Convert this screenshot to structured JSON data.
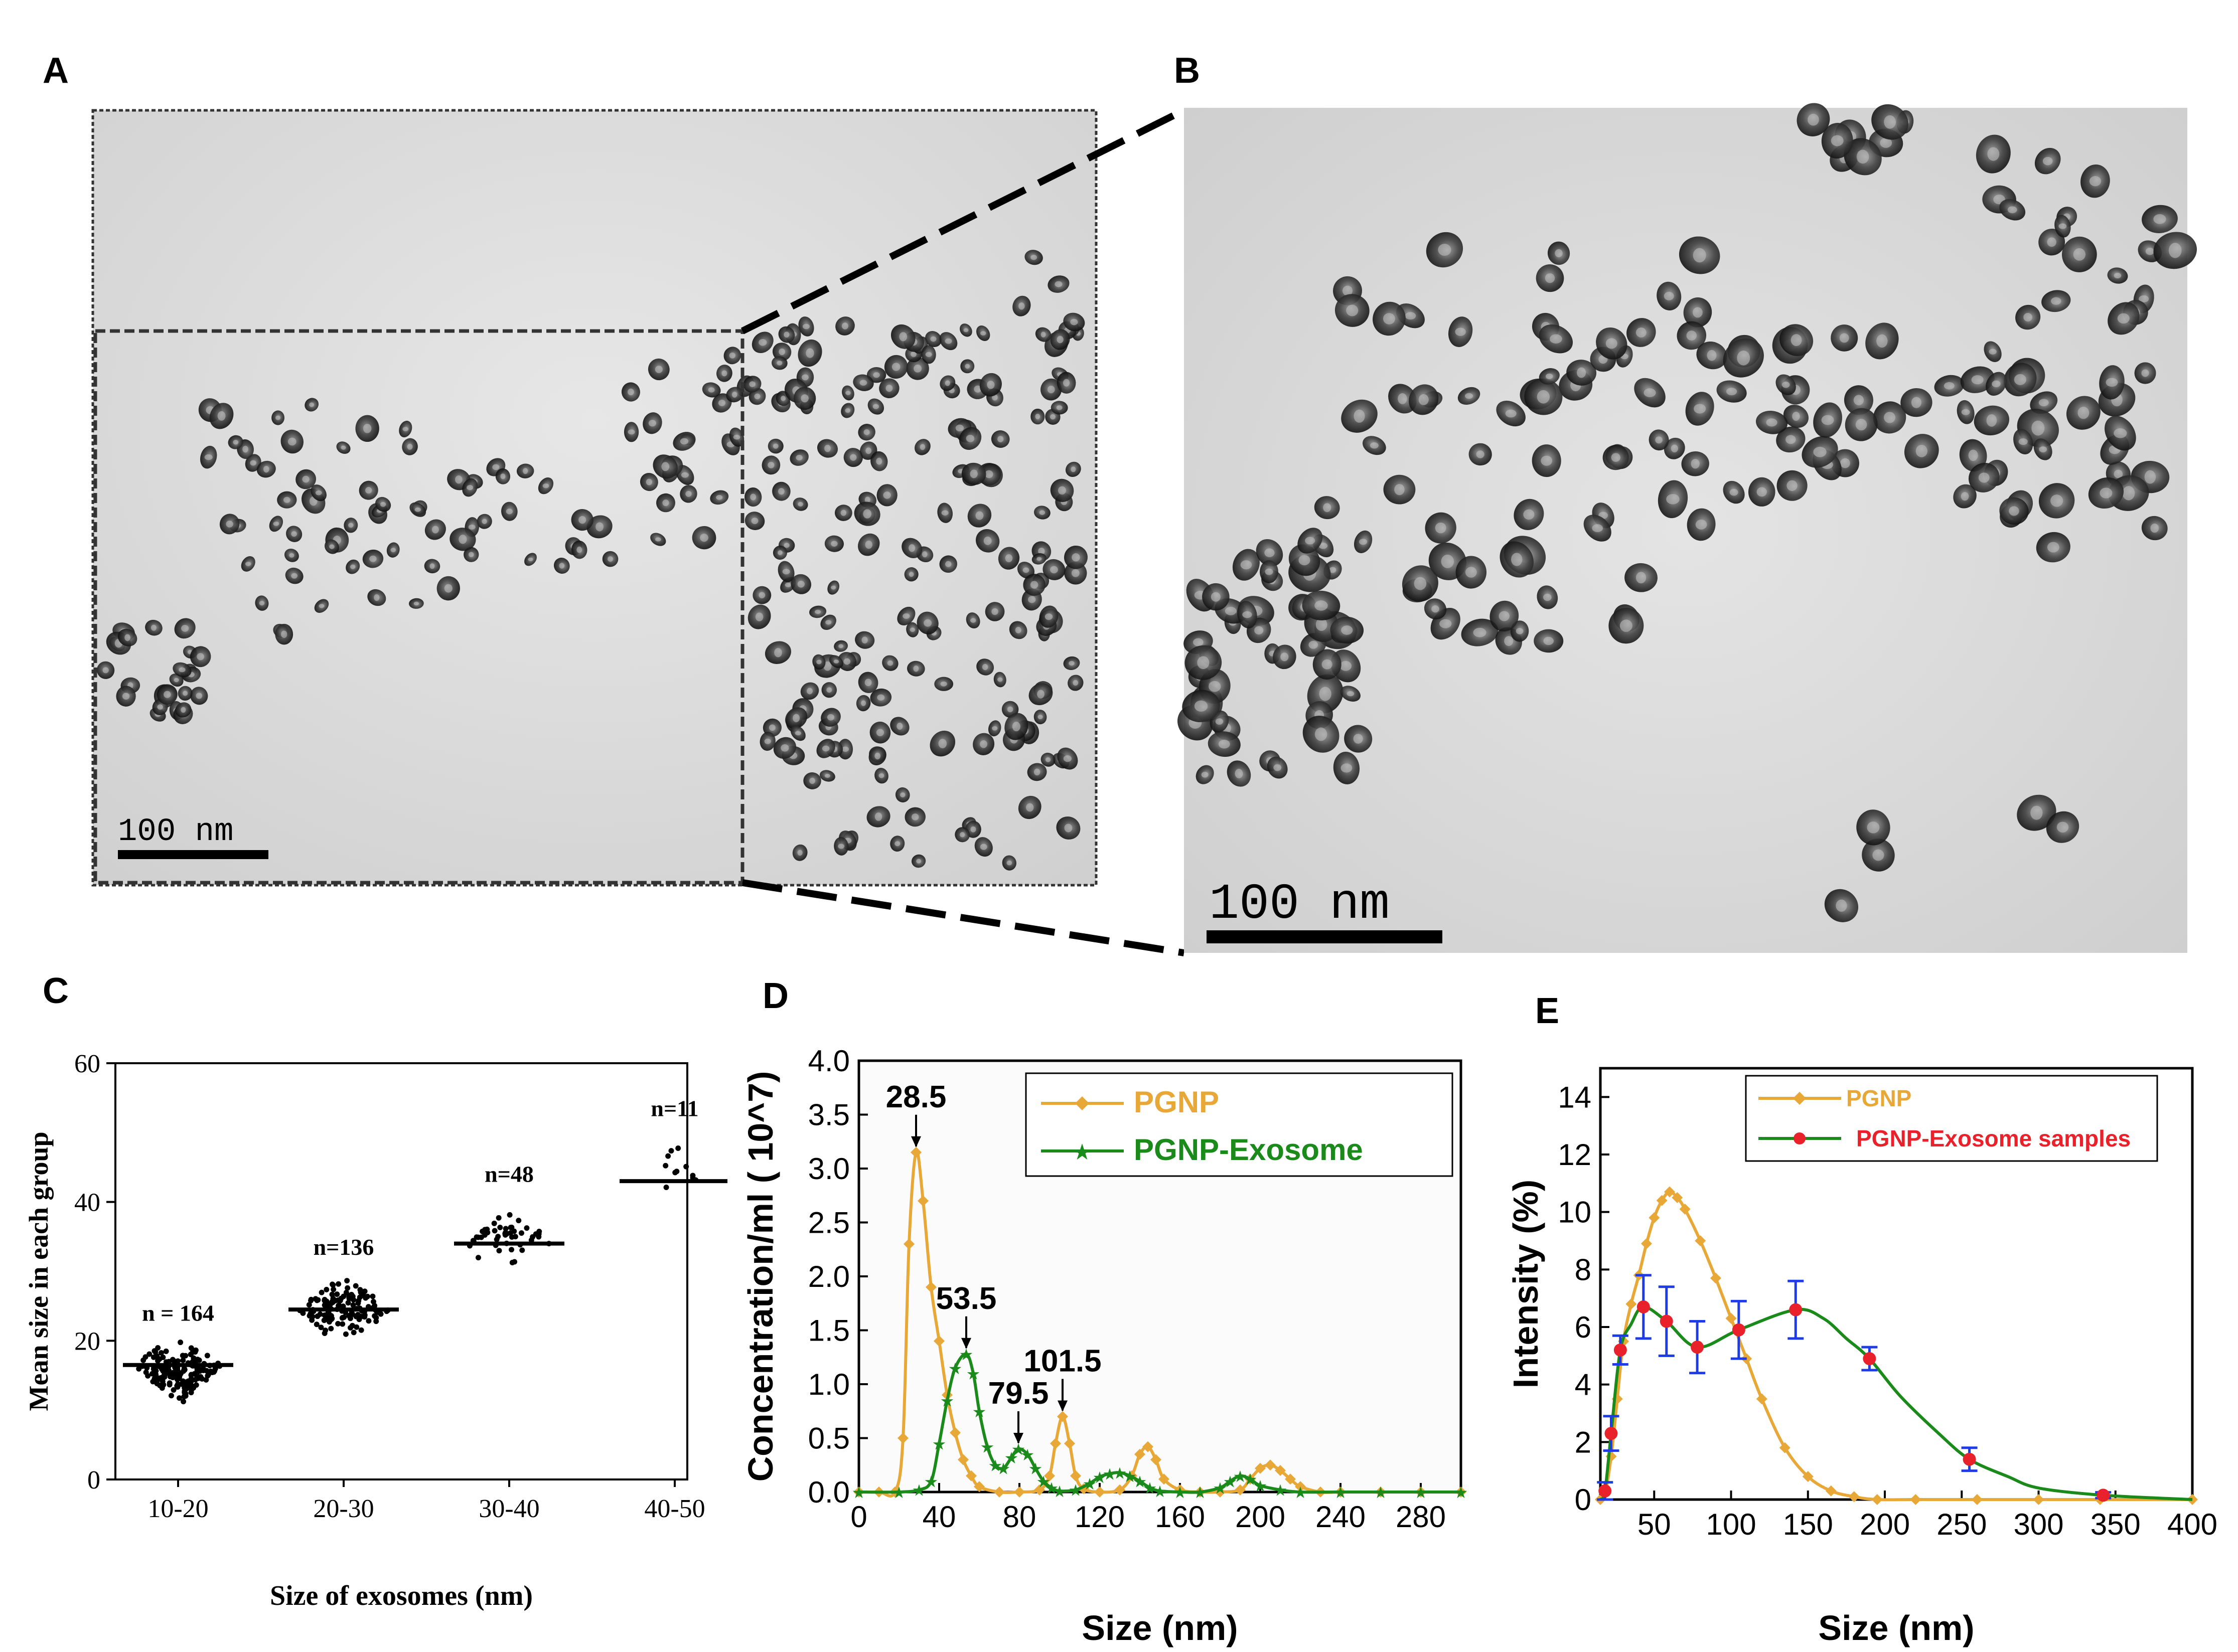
{
  "panels": {
    "A": {
      "label": "A",
      "scale_bar": "100 nm"
    },
    "B": {
      "label": "B",
      "scale_bar": "100 nm"
    },
    "C": {
      "label": "C"
    },
    "D": {
      "label": "D"
    },
    "E": {
      "label": "E"
    }
  },
  "chart_data": [
    {
      "panel": "C",
      "type": "scatter",
      "xlabel": "Size of exosomes (nm)",
      "ylabel": "Mean size in each group",
      "ylim": [
        0,
        60
      ],
      "yticks": [
        0,
        20,
        40,
        60
      ],
      "categories": [
        "10-20",
        "20-30",
        "30-40",
        "40-50"
      ],
      "groups": [
        {
          "category": "10-20",
          "n_label": "n = 164",
          "n": 164,
          "mean": 16.5,
          "min": 11,
          "max": 20
        },
        {
          "category": "20-30",
          "n_label": "n=136",
          "n": 136,
          "mean": 24.5,
          "min": 20,
          "max": 29.5
        },
        {
          "category": "30-40",
          "n_label": "n=48",
          "n": 48,
          "mean": 34,
          "min": 30,
          "max": 40
        },
        {
          "category": "40-50",
          "n_label": "n=11",
          "n": 11,
          "mean": 43,
          "min": 40.5,
          "max": 49.5
        }
      ],
      "marker_color": "#000000"
    },
    {
      "panel": "D",
      "type": "line",
      "xlabel": "Size (nm)",
      "ylabel": "Concentration/ml ( 10^7)",
      "xlim": [
        0,
        300
      ],
      "ylim": [
        0,
        4.0
      ],
      "xticks": [
        0,
        40,
        80,
        120,
        160,
        200,
        240,
        280
      ],
      "yticks": [
        "0.0",
        "0.5",
        "1.0",
        "1.5",
        "2.0",
        "2.5",
        "3.0",
        "3.5",
        "4.0"
      ],
      "legend_position": "top-right",
      "series": [
        {
          "name": "PGNP",
          "color": "#E8A838",
          "marker": "diamond",
          "x": [
            0,
            10,
            18,
            22,
            25,
            28.5,
            32,
            36,
            40,
            44,
            48,
            52,
            56,
            60,
            70,
            80,
            90,
            95,
            98,
            101.5,
            105,
            108,
            112,
            120,
            130,
            136,
            140,
            144,
            148,
            152,
            160,
            170,
            180,
            190,
            195,
            200,
            205,
            210,
            215,
            220,
            230,
            240,
            260,
            280,
            300
          ],
          "y": [
            0,
            0,
            0,
            0.5,
            2.3,
            3.15,
            2.7,
            1.9,
            1.4,
            0.9,
            0.55,
            0.3,
            0.15,
            0.05,
            0,
            0,
            0.02,
            0.15,
            0.45,
            0.7,
            0.45,
            0.15,
            0.03,
            0,
            0.02,
            0.15,
            0.35,
            0.42,
            0.3,
            0.12,
            0.02,
            0,
            0,
            0.02,
            0.12,
            0.22,
            0.25,
            0.2,
            0.12,
            0.05,
            0,
            0,
            0,
            0,
            0
          ]
        },
        {
          "name": "PGNP-Exosome",
          "color": "#1A8A1A",
          "marker": "star",
          "x": [
            0,
            20,
            30,
            36,
            40,
            44,
            48,
            53.5,
            57,
            60,
            64,
            68,
            72,
            76,
            79.5,
            84,
            88,
            92,
            96,
            100,
            108,
            115,
            120,
            125,
            130,
            135,
            140,
            145,
            150,
            160,
            170,
            180,
            185,
            190,
            195,
            200,
            210,
            220,
            240,
            260,
            280,
            300
          ],
          "y": [
            0,
            0,
            0.02,
            0.1,
            0.45,
            0.85,
            1.15,
            1.28,
            1.1,
            0.75,
            0.42,
            0.25,
            0.22,
            0.32,
            0.4,
            0.35,
            0.22,
            0.1,
            0.04,
            0.01,
            0.02,
            0.08,
            0.14,
            0.17,
            0.18,
            0.15,
            0.1,
            0.04,
            0.01,
            0,
            0,
            0.04,
            0.1,
            0.15,
            0.12,
            0.06,
            0.02,
            0,
            0,
            0,
            0,
            0
          ]
        }
      ],
      "annotations": [
        {
          "text": "28.5",
          "x": 28.5,
          "y": 3.15
        },
        {
          "text": "53.5",
          "x": 53.5,
          "y": 1.28
        },
        {
          "text": "79.5",
          "x": 79.5,
          "y": 0.4
        },
        {
          "text": "101.5",
          "x": 101.5,
          "y": 0.7
        }
      ]
    },
    {
      "panel": "E",
      "type": "line",
      "xlabel": "Size (nm)",
      "ylabel": "Intensity (%)",
      "xlim": [
        15,
        400
      ],
      "ylim": [
        0,
        15
      ],
      "xticks": [
        50,
        100,
        150,
        200,
        250,
        300,
        350,
        400
      ],
      "yticks": [
        0,
        2,
        4,
        6,
        8,
        10,
        12,
        14
      ],
      "legend_position": "top-right",
      "series": [
        {
          "name": "PGNP",
          "color": "#E8A838",
          "marker": "diamond",
          "x": [
            15,
            18,
            22,
            26,
            30,
            35,
            40,
            45,
            50,
            55,
            60,
            65,
            70,
            80,
            90,
            100,
            110,
            120,
            135,
            150,
            165,
            180,
            195,
            220,
            260,
            300,
            340,
            400
          ],
          "y": [
            0,
            0.2,
            1.5,
            3.5,
            5.5,
            6.8,
            7.8,
            8.9,
            9.8,
            10.4,
            10.7,
            10.5,
            10.1,
            9.0,
            7.7,
            6.3,
            4.9,
            3.5,
            1.8,
            0.8,
            0.3,
            0.1,
            0,
            0,
            0,
            0,
            0,
            0
          ]
        },
        {
          "name": "PGNP-Exosome samples",
          "color": "#1A8A1A",
          "marker": "circle",
          "marker_color": "#E8212B",
          "errorbar_color": "#1E3CE6",
          "x": [
            15,
            18,
            22,
            28,
            35,
            43,
            58,
            78,
            105,
            142,
            160,
            175,
            190,
            210,
            235,
            255,
            280,
            300,
            342,
            400
          ],
          "y": [
            0,
            0.3,
            2.3,
            5.2,
            6.1,
            6.7,
            6.2,
            5.3,
            5.9,
            6.6,
            6.3,
            5.6,
            4.9,
            3.6,
            2.3,
            1.4,
            0.8,
            0.4,
            0.15,
            0
          ],
          "err": [
            0,
            0.3,
            0.6,
            0.5,
            0.8,
            1.1,
            1.2,
            0.9,
            1.0,
            1.0,
            0,
            0,
            0.4,
            0,
            0,
            0.4,
            0,
            0,
            0.1,
            0
          ],
          "marker_x": [
            18,
            22,
            28,
            43,
            58,
            78,
            105,
            142,
            190,
            255,
            342
          ]
        }
      ]
    }
  ]
}
